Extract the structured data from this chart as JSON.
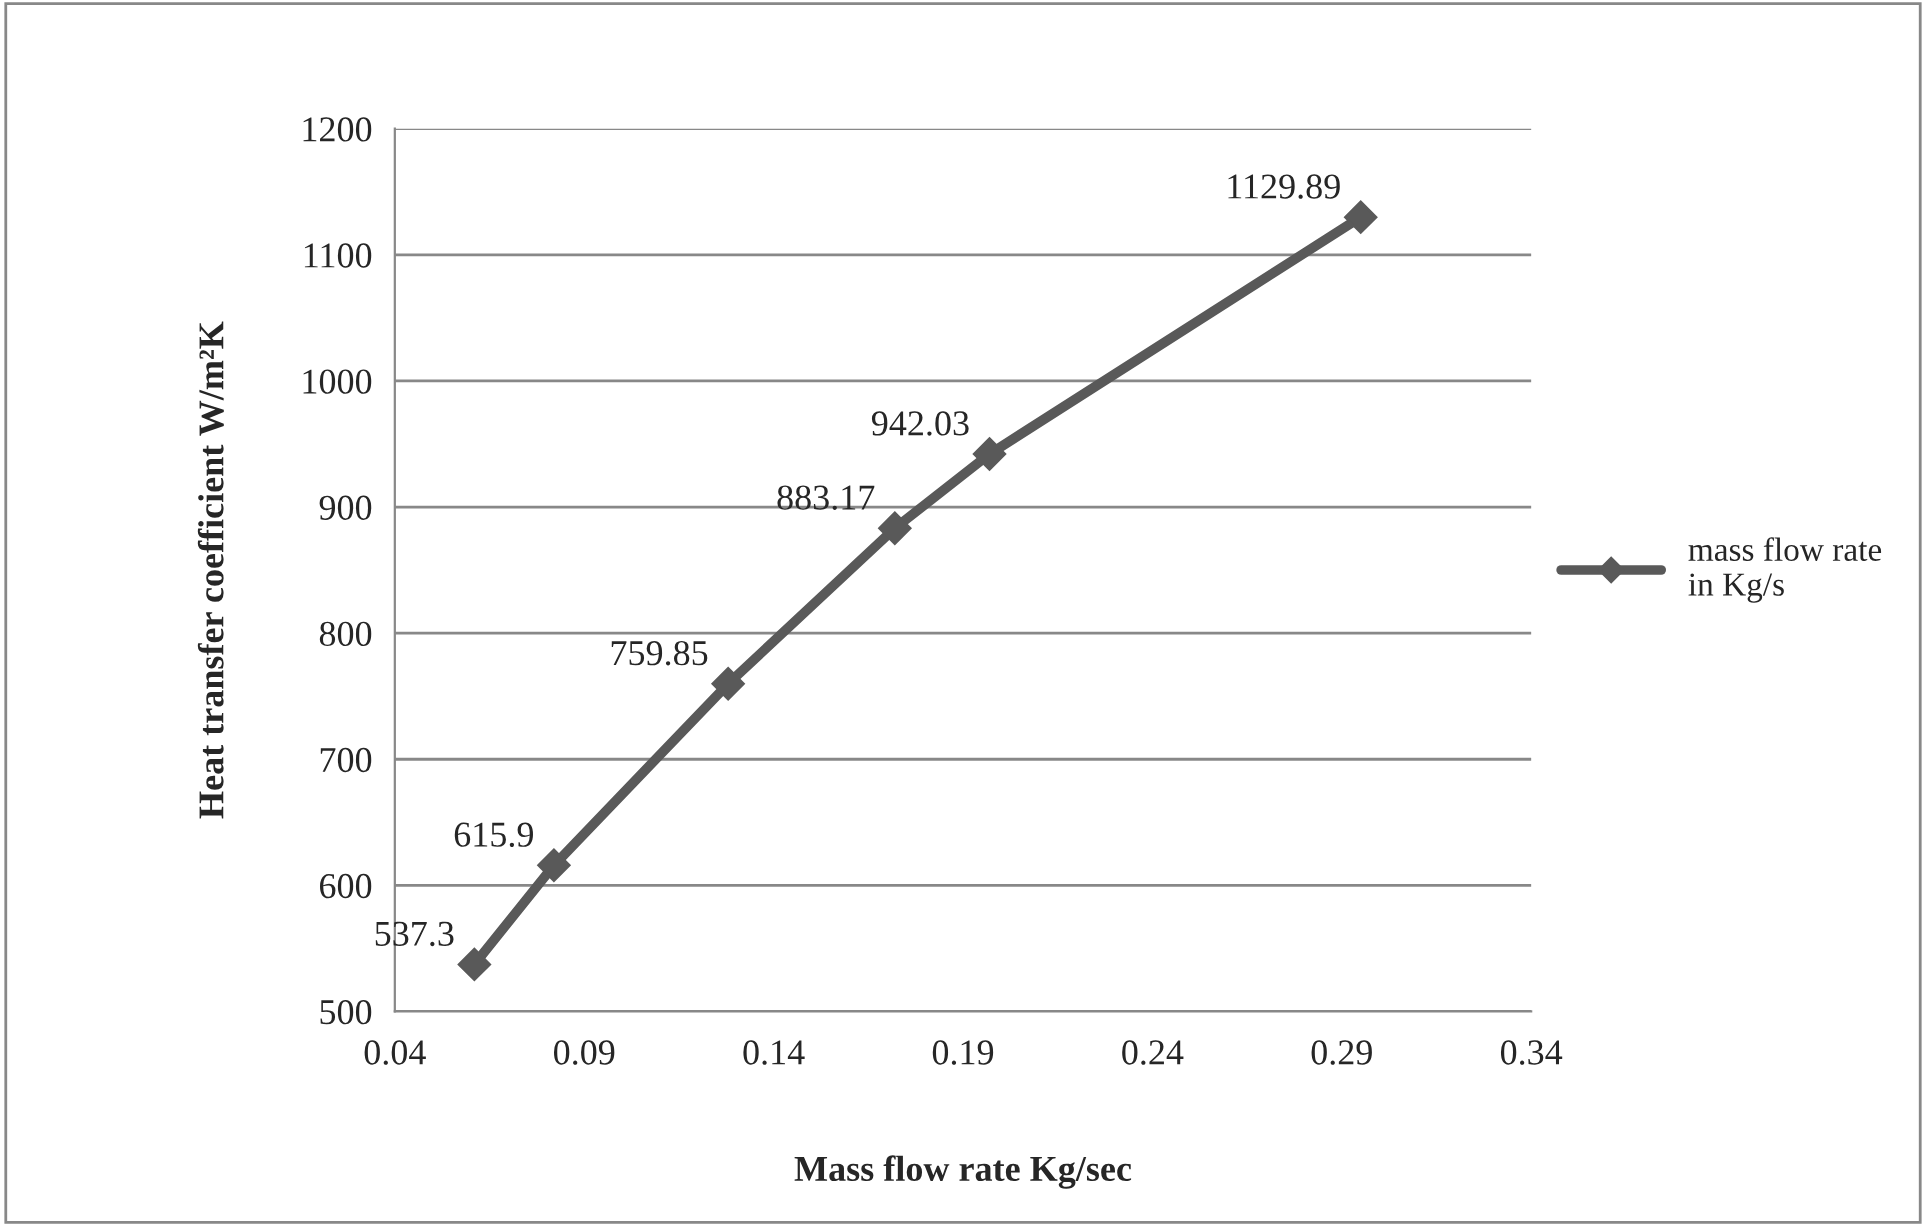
{
  "chart_data": {
    "type": "line",
    "xlabel": "Mass flow rate Kg/sec",
    "ylabel": "Heat transfer coefficient W/m²K",
    "x": [
      0.061,
      0.082,
      0.128,
      0.172,
      0.197,
      0.295
    ],
    "series": [
      {
        "name": "mass flow rate in Kg/s",
        "color": "#595959",
        "values": [
          537.3,
          615.9,
          759.85,
          883.17,
          942.03,
          1129.89
        ]
      }
    ],
    "xlim": [
      0.04,
      0.34
    ],
    "xticks": [
      {
        "value": 0.04,
        "label": "0.04"
      },
      {
        "value": 0.09,
        "label": "0.09"
      },
      {
        "value": 0.14,
        "label": "0.14"
      },
      {
        "value": 0.19,
        "label": "0.19"
      },
      {
        "value": 0.24,
        "label": "0.24"
      },
      {
        "value": 0.29,
        "label": "0.29"
      },
      {
        "value": 0.34,
        "label": "0.34"
      }
    ],
    "ylim": [
      500,
      1200
    ],
    "yticks": [
      500,
      600,
      700,
      800,
      900,
      1000,
      1100,
      1200
    ],
    "grid": "y",
    "legend": "right",
    "marker": "diamond",
    "line_style": "solid",
    "data_labels": true
  }
}
